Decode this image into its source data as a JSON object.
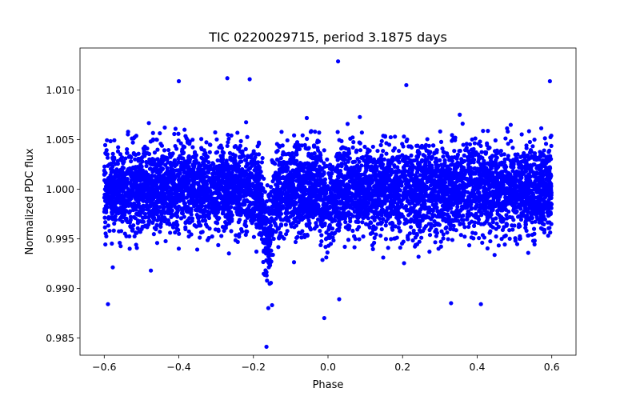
{
  "chart_data": {
    "type": "scatter",
    "title": "TIC 0220029715, period 3.1875 days",
    "xlabel": "Phase",
    "ylabel": "Normalized PDC flux",
    "xlim": [
      -0.665,
      0.665
    ],
    "ylim": [
      0.98325,
      1.01425
    ],
    "xticks": [
      {
        "value": -0.6,
        "label": "−0.6"
      },
      {
        "value": -0.4,
        "label": "−0.4"
      },
      {
        "value": -0.2,
        "label": "−0.2"
      },
      {
        "value": 0.0,
        "label": "0.0"
      },
      {
        "value": 0.2,
        "label": "0.2"
      },
      {
        "value": 0.4,
        "label": "0.4"
      },
      {
        "value": 0.6,
        "label": "0.6"
      }
    ],
    "yticks": [
      {
        "value": 0.985,
        "label": "0.985"
      },
      {
        "value": 0.99,
        "label": "0.990"
      },
      {
        "value": 0.995,
        "label": "0.995"
      },
      {
        "value": 1.0,
        "label": "1.000"
      },
      {
        "value": 1.005,
        "label": "1.005"
      },
      {
        "value": 1.01,
        "label": "1.010"
      }
    ],
    "color": "#0000ff",
    "grid": false,
    "series": [
      {
        "name": "PDC flux",
        "phase_range": [
          -0.6,
          0.6
        ],
        "baseline": 1.0,
        "scatter_sigma": 0.0022,
        "n_points": 6500,
        "dips": [
          {
            "center": -0.16,
            "depth": 0.0045,
            "width": 0.012
          },
          {
            "center": 0.0,
            "depth": 0.002,
            "width": 0.012
          }
        ],
        "outliers": [
          {
            "x": -0.165,
            "y": 0.9841
          },
          {
            "x": 0.027,
            "y": 1.0129
          },
          {
            "x": -0.01,
            "y": 0.987
          },
          {
            "x": -0.21,
            "y": 1.0111
          },
          {
            "x": -0.27,
            "y": 1.0112
          },
          {
            "x": 0.595,
            "y": 1.0109
          },
          {
            "x": -0.4,
            "y": 1.0109
          },
          {
            "x": -0.59,
            "y": 0.9884
          },
          {
            "x": 0.41,
            "y": 0.9884
          },
          {
            "x": 0.03,
            "y": 0.9889
          },
          {
            "x": 0.21,
            "y": 1.0105
          },
          {
            "x": 0.33,
            "y": 0.9885
          },
          {
            "x": -0.16,
            "y": 0.988
          },
          {
            "x": -0.15,
            "y": 0.9883
          }
        ]
      }
    ]
  }
}
